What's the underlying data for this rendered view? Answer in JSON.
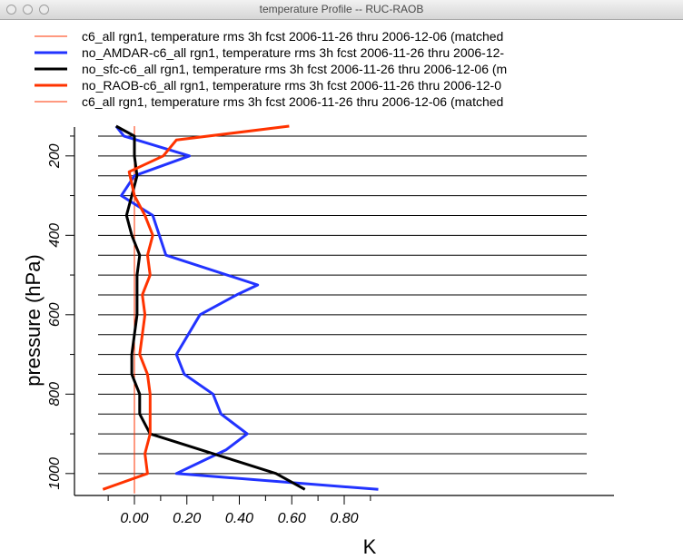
{
  "window": {
    "title": "temperature Profile -- RUC-RAOB"
  },
  "chart_data": {
    "type": "line",
    "title": "",
    "xlabel": "K",
    "ylabel": "pressure (hPa)",
    "xlim": [
      -0.1,
      0.92
    ],
    "ylim": [
      1050,
      125
    ],
    "y_scale": "linear",
    "x_ticks": [
      "0.00",
      "0.20",
      "0.40",
      "0.60",
      "0.80"
    ],
    "y_ticks": [
      "200",
      "400",
      "600",
      "800",
      "1000"
    ],
    "grid_levels": [
      150,
      200,
      250,
      300,
      350,
      400,
      450,
      500,
      550,
      600,
      650,
      700,
      750,
      800,
      850,
      900,
      950,
      1000
    ],
    "legend_position": "top",
    "series": [
      {
        "name": "c6_all rgn1, temperature rms 3h fcst 2006-11-26 thru 2006-12-06 (matched",
        "color": "#ff3300",
        "width": 1,
        "points": [
          [
            0.0,
            125
          ],
          [
            0.0,
            1050
          ]
        ]
      },
      {
        "name": "no_AMDAR-c6_all rgn1, temperature rms 3h fcst 2006-11-26 thru 2006-12-",
        "color": "#2233ff",
        "width": 3,
        "points": [
          [
            -0.07,
            125
          ],
          [
            -0.04,
            150
          ],
          [
            0.21,
            200
          ],
          [
            0.0,
            250
          ],
          [
            -0.05,
            300
          ],
          [
            0.07,
            350
          ],
          [
            0.12,
            450
          ],
          [
            0.47,
            525
          ],
          [
            0.39,
            550
          ],
          [
            0.25,
            600
          ],
          [
            0.16,
            700
          ],
          [
            0.19,
            750
          ],
          [
            0.3,
            800
          ],
          [
            0.33,
            850
          ],
          [
            0.43,
            900
          ],
          [
            0.35,
            940
          ],
          [
            0.16,
            1000
          ],
          [
            0.93,
            1040
          ]
        ]
      },
      {
        "name": "no_sfc-c6_all rgn1, temperature rms 3h fcst 2006-11-26 thru 2006-12-06 (m",
        "color": "#000000",
        "width": 3,
        "points": [
          [
            -0.07,
            125
          ],
          [
            0.0,
            150
          ],
          [
            0.0,
            200
          ],
          [
            0.01,
            250
          ],
          [
            -0.01,
            300
          ],
          [
            -0.03,
            350
          ],
          [
            -0.01,
            400
          ],
          [
            0.02,
            450
          ],
          [
            0.01,
            500
          ],
          [
            0.01,
            600
          ],
          [
            0.0,
            650
          ],
          [
            -0.01,
            700
          ],
          [
            -0.01,
            750
          ],
          [
            0.02,
            800
          ],
          [
            0.02,
            850
          ],
          [
            0.06,
            900
          ],
          [
            0.3,
            950
          ],
          [
            0.54,
            1000
          ],
          [
            0.65,
            1040
          ]
        ]
      },
      {
        "name": "no_RAOB-c6_all rgn1, temperature rms 3h fcst 2006-11-26 thru 2006-12-0",
        "color": "#ff3300",
        "width": 3,
        "points": [
          [
            0.59,
            125
          ],
          [
            0.16,
            160
          ],
          [
            0.11,
            200
          ],
          [
            -0.02,
            240
          ],
          [
            0.0,
            300
          ],
          [
            0.04,
            350
          ],
          [
            0.07,
            400
          ],
          [
            0.05,
            450
          ],
          [
            0.06,
            500
          ],
          [
            0.03,
            550
          ],
          [
            0.04,
            600
          ],
          [
            0.03,
            650
          ],
          [
            0.02,
            700
          ],
          [
            0.05,
            750
          ],
          [
            0.06,
            800
          ],
          [
            0.06,
            850
          ],
          [
            0.06,
            900
          ],
          [
            0.04,
            950
          ],
          [
            0.05,
            1000
          ],
          [
            -0.12,
            1040
          ]
        ]
      },
      {
        "name": "c6_all rgn1, temperature rms 3h fcst 2006-11-26 thru 2006-12-06 (matched",
        "color": "#ff3300",
        "width": 1,
        "points": []
      }
    ]
  }
}
